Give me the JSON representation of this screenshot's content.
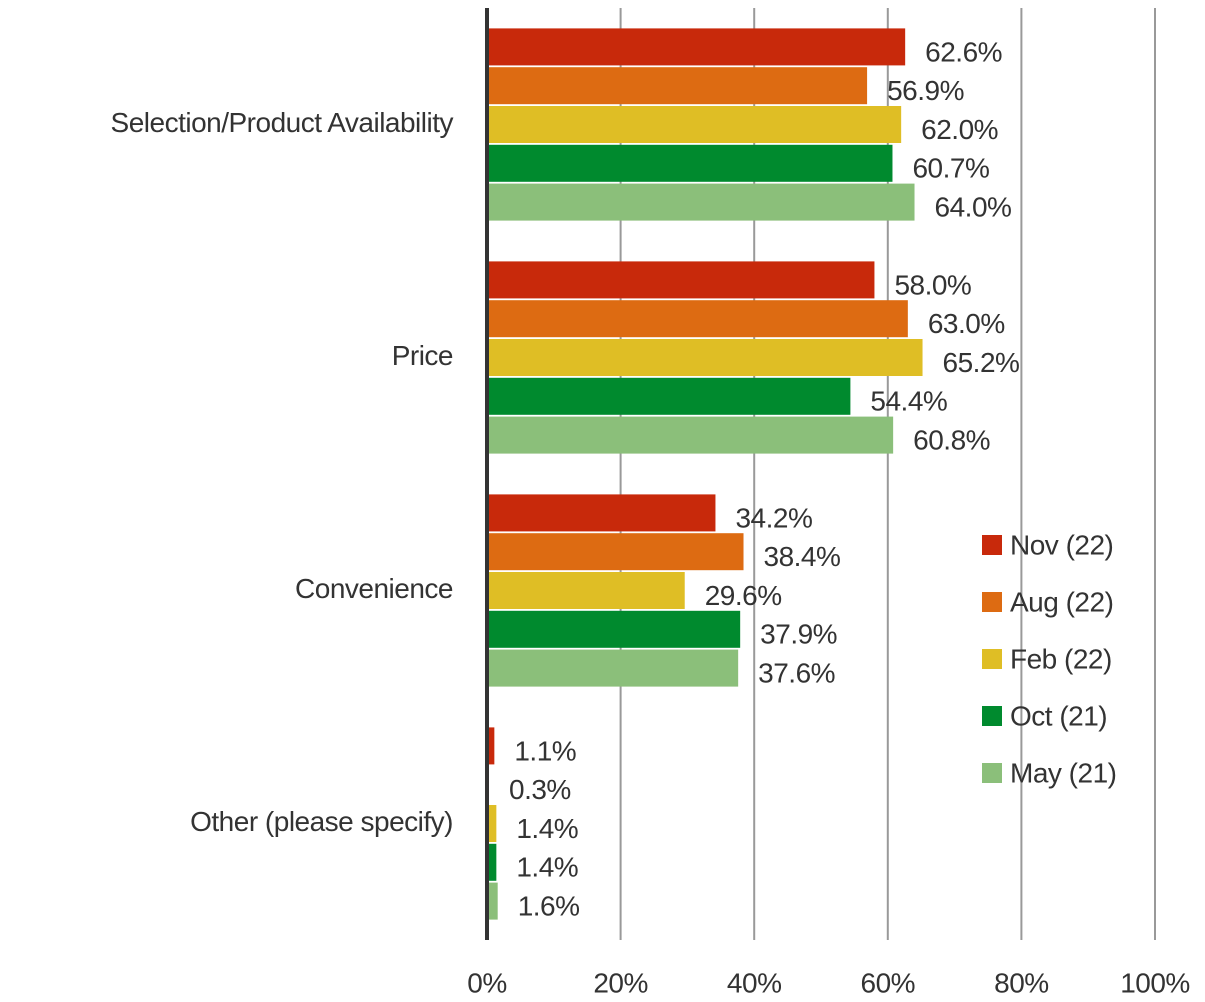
{
  "chart_data": {
    "type": "hbar",
    "categories": [
      "Selection/Product Availability",
      "Price",
      "Convenience",
      "Other (please specify)"
    ],
    "series": [
      {
        "name": "Nov (22)",
        "color": "#c8290b",
        "values": [
          62.6,
          58.0,
          34.2,
          1.1
        ],
        "value_labels": [
          "62.6%",
          "58.0%",
          "34.2%",
          "1.1%"
        ]
      },
      {
        "name": "Aug (22)",
        "color": "#dd6b12",
        "values": [
          56.9,
          63.0,
          38.4,
          0.3
        ],
        "value_labels": [
          "56.9%",
          "63.0%",
          "38.4%",
          "0.3%"
        ]
      },
      {
        "name": "Feb (22)",
        "color": "#dfbe25",
        "values": [
          62.0,
          65.2,
          29.6,
          1.4
        ],
        "value_labels": [
          "62.0%",
          "65.2%",
          "29.6%",
          "1.4%"
        ]
      },
      {
        "name": "Oct (21)",
        "color": "#008a2e",
        "values": [
          60.7,
          54.4,
          37.9,
          1.4
        ],
        "value_labels": [
          "60.7%",
          "54.4%",
          "37.9%",
          "1.4%"
        ]
      },
      {
        "name": "May (21)",
        "color": "#8bbf7a",
        "values": [
          64.0,
          60.8,
          37.6,
          1.6
        ],
        "value_labels": [
          "64.0%",
          "60.8%",
          "37.6%",
          "1.6%"
        ]
      }
    ],
    "xlim": [
      0,
      100
    ],
    "xticks": [
      {
        "value": 0,
        "label": "0%"
      },
      {
        "value": 20,
        "label": "20%"
      },
      {
        "value": 40,
        "label": "40%"
      },
      {
        "value": 60,
        "label": "60%"
      },
      {
        "value": 80,
        "label": "80%"
      },
      {
        "value": 100,
        "label": "100%"
      }
    ],
    "grid": true,
    "legend": "right"
  }
}
